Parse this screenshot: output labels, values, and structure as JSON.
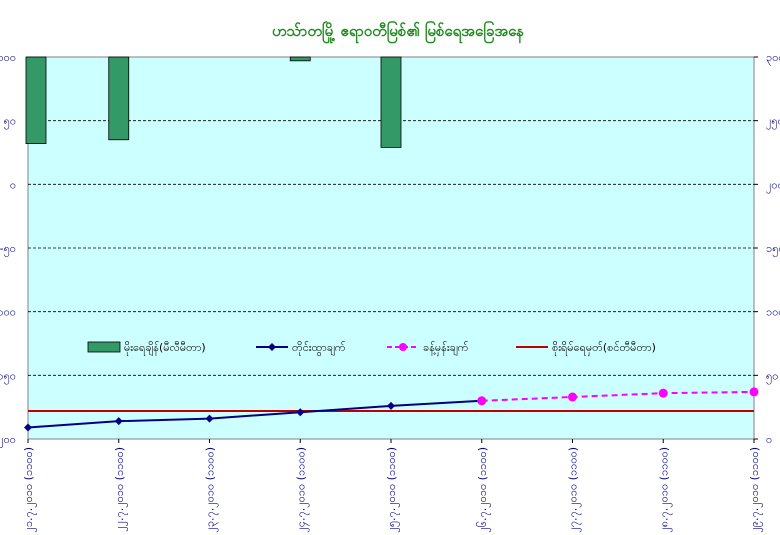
{
  "chart_data": {
    "type": "bar",
    "title": "ဟသ်ာတမြို့ ဧရာဝတီမြစ်၏ မြစ်ရေအခြေအနေ",
    "categories": [
      "၂၁.၇.၂၀၁၀ (၁၁၀၀)",
      "၂၂.၇.၂၀၁၀ (၁၁၀၀)",
      "၂၃.၇.၂၀၁၀ (၁၁၀၀)",
      "၂၄.၇.၂၀၁၀ (၁၁၀၀)",
      "၂၅.၇.၂၀၁၀ (၁၁၀၀)",
      "၂၆.၇.၂၀၁၀ (၁၁၀၀)",
      "၂၇.၇.၂၀၁၀ (၁၁၀၀)",
      "၂၈.၇.၂၀၁၀ (၁၁၀၀)",
      "၂၉.၇.၂၀၁၀ (၁၁၀၀)"
    ],
    "left_axis": {
      "ticks": [
        "၁၀၀",
        "၅၀",
        "၀",
        "-၅၀",
        "-၁၀၀",
        "-၁၅၀",
        "-၂၀၀"
      ],
      "reversed": true
    },
    "right_axis": {
      "ticks": [
        "၀",
        "၅၀",
        "၁၀၀",
        "၁၅၀",
        "၂၀၀",
        "၂၅၀",
        "၃၀၀"
      ]
    },
    "series": [
      {
        "name": "မိုးရေချိန်(မီလီမီတာ)",
        "kind": "bar",
        "color": "#339966",
        "values": [
          68,
          65,
          null,
          3,
          71,
          null,
          null,
          null,
          null
        ]
      },
      {
        "name": "တိုင်းထွာချက်",
        "kind": "line",
        "color": "#000080",
        "values": [
          9,
          14,
          16,
          21,
          26,
          30,
          null,
          null,
          null
        ]
      },
      {
        "name": "ခန့်မှန်းချက်",
        "kind": "dashed-line",
        "color": "#ff00ff",
        "values": [
          null,
          null,
          null,
          null,
          null,
          30,
          33,
          36,
          37
        ]
      },
      {
        "name": "စိုးရိမ်ရေမှတ်(စင်တီမီတာ)",
        "kind": "hline",
        "color": "#c00000",
        "values": [
          22,
          22,
          22,
          22,
          22,
          22,
          22,
          22,
          22
        ]
      }
    ],
    "grid": true,
    "legend": "middle"
  }
}
